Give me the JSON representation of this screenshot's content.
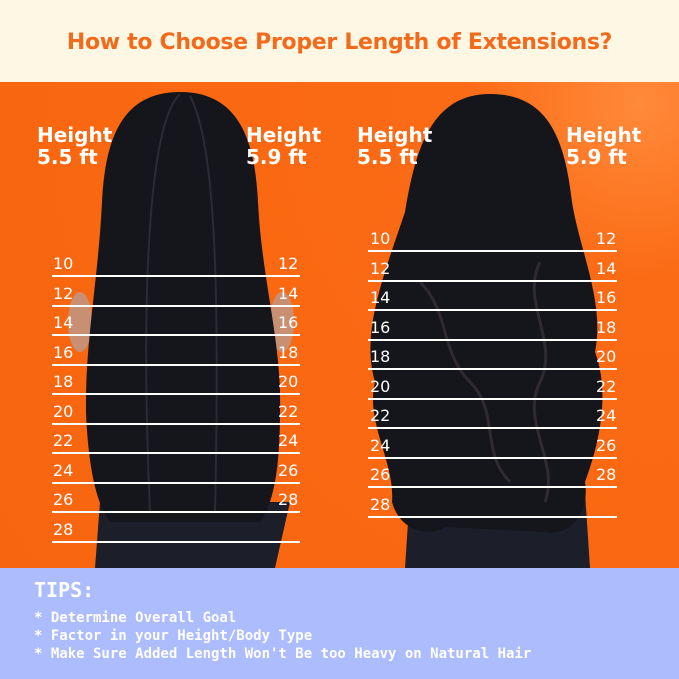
{
  "title": "How to Choose Proper Length of Extensions?",
  "colors": {
    "accent": "#f26a1b",
    "panel": "#fb6a14",
    "tips_bg": "#adbcfc",
    "header_bg": "#fdf7e4",
    "hair": "#15151c"
  },
  "charts": [
    {
      "style": "straight hair",
      "left_header": {
        "line1": "Height",
        "line2": "5.5 ft"
      },
      "right_header": {
        "line1": "Height",
        "line2": "5.9 ft"
      },
      "left_lengths": [
        "10",
        "12",
        "14",
        "16",
        "18",
        "20",
        "22",
        "24",
        "26",
        "28"
      ],
      "right_lengths": [
        "12",
        "14",
        "16",
        "18",
        "20",
        "22",
        "24",
        "26",
        "28"
      ]
    },
    {
      "style": "wavy hair",
      "left_header": {
        "line1": "Height",
        "line2": "5.5 ft"
      },
      "right_header": {
        "line1": "Height",
        "line2": "5.9 ft"
      },
      "left_lengths": [
        "10",
        "12",
        "14",
        "16",
        "18",
        "20",
        "22",
        "24",
        "26",
        "28"
      ],
      "right_lengths": [
        "12",
        "14",
        "16",
        "18",
        "20",
        "22",
        "24",
        "26",
        "28"
      ]
    }
  ],
  "tips": {
    "title": "TIPS:",
    "items": [
      "* Determine Overall Goal",
      "* Factor in your Height/Body Type",
      "* Make Sure Added Length Won't Be too Heavy on Natural Hair"
    ]
  }
}
